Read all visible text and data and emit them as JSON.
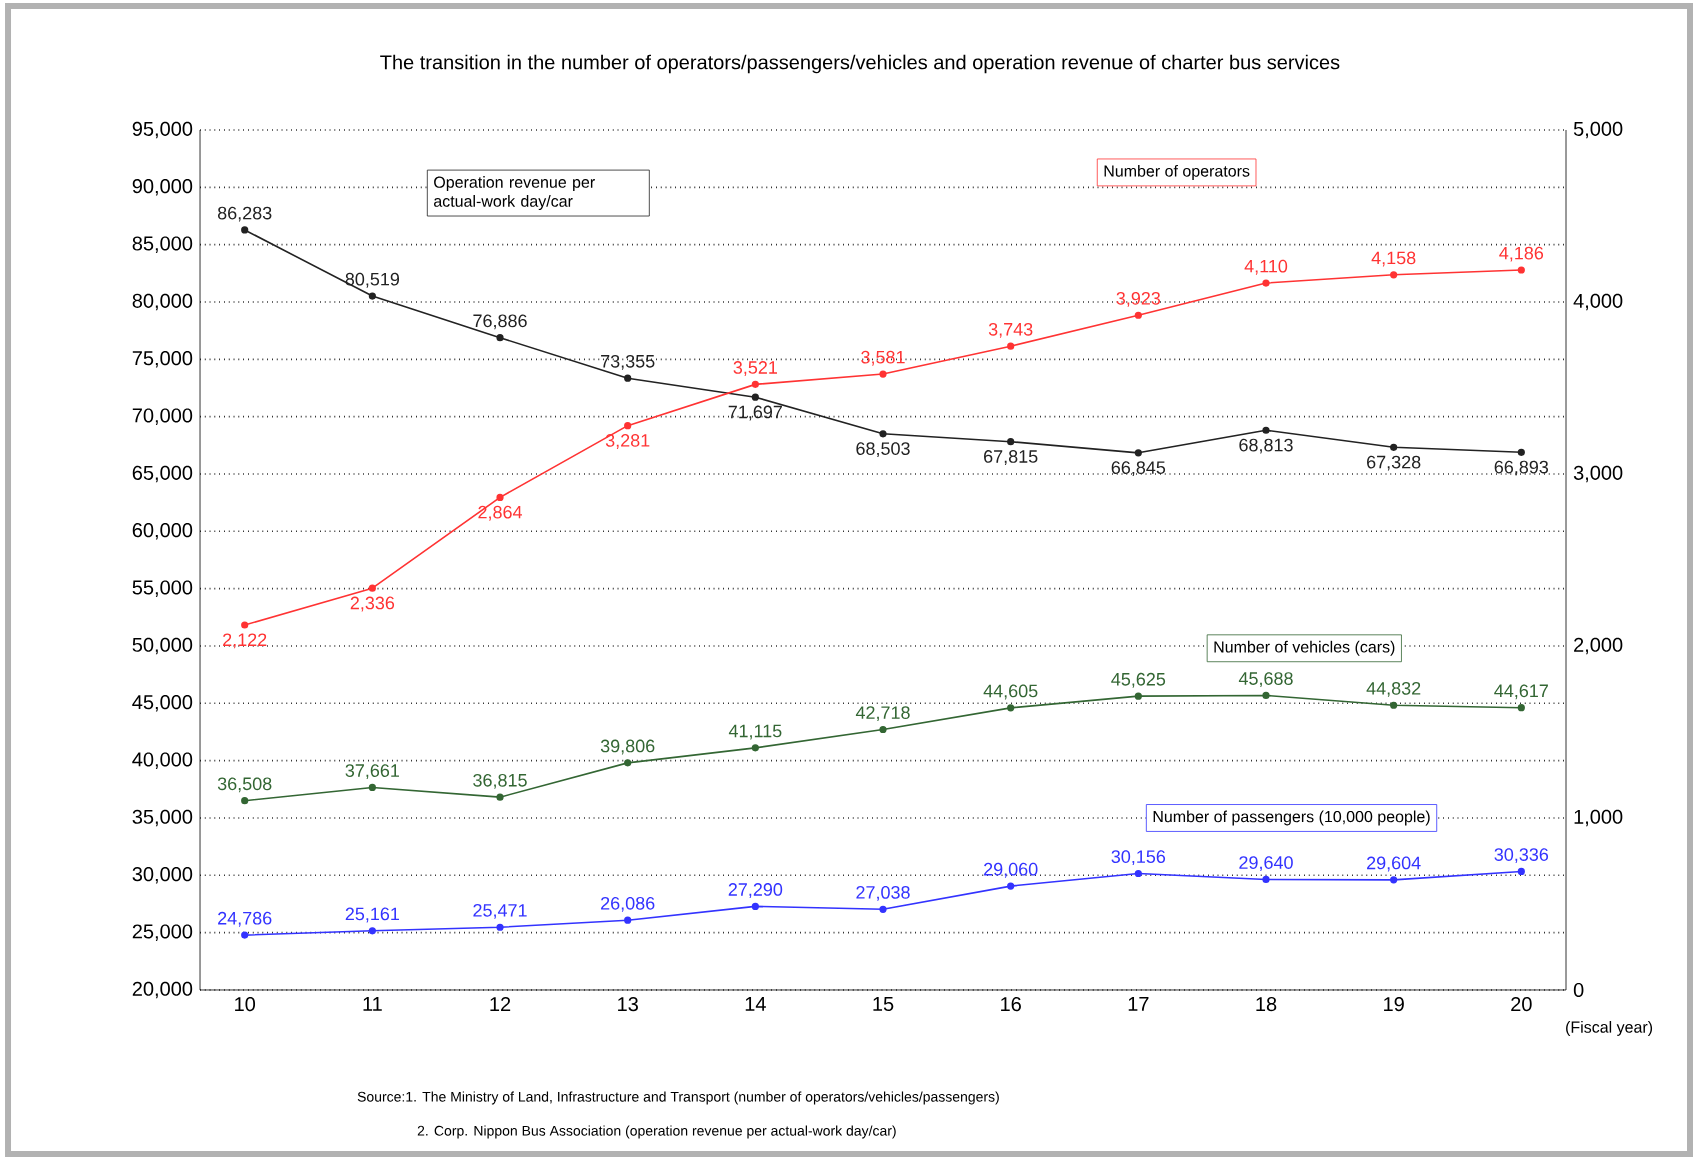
{
  "chart_data": {
    "type": "line",
    "title": "The transition in the number of operators/passengers/vehicles and operation revenue of charter bus services",
    "xlabel": "(Fiscal year)",
    "categories": [
      "10",
      "11",
      "12",
      "13",
      "14",
      "15",
      "16",
      "17",
      "18",
      "19",
      "20"
    ],
    "series": [
      {
        "name": "Operation revenue per actual-work day/car",
        "color": "#222222",
        "values": [
          86283,
          80519,
          76886,
          73355,
          71697,
          68503,
          67815,
          66845,
          68813,
          67328,
          66893
        ],
        "value_labels": [
          "86,283",
          "80,519",
          "76,886",
          "73,355",
          "71,697",
          "68,503",
          "67,815",
          "66,845",
          "68,813",
          "67,328",
          "66,893"
        ]
      },
      {
        "name": "Number of operators",
        "color": "#ff3333",
        "axis": "y2",
        "values": [
          2122,
          2336,
          2864,
          3281,
          3521,
          3581,
          3743,
          3923,
          4110,
          4158,
          4186
        ],
        "value_labels": [
          "2,122",
          "2,336",
          "2,864",
          "3,281",
          "3,521",
          "3,581",
          "3,743",
          "3,923",
          "4,110",
          "4,158",
          "4,186"
        ]
      },
      {
        "name": "Number of vehicles (cars)",
        "color": "#336633",
        "values": [
          36508,
          37661,
          36815,
          39806,
          41115,
          42718,
          44605,
          45625,
          45688,
          44832,
          44617
        ],
        "value_labels": [
          "36,508",
          "37,661",
          "36,815",
          "39,806",
          "41,115",
          "42,718",
          "44,605",
          "45,625",
          "45,688",
          "44,832",
          "44,617"
        ]
      },
      {
        "name": "Number of passengers (10,000 people)",
        "color": "#3333ff",
        "values": [
          24786,
          25161,
          25471,
          26086,
          27290,
          27038,
          29060,
          30156,
          29640,
          29604,
          30336
        ],
        "value_labels": [
          "24,786",
          "25,161",
          "25,471",
          "26,086",
          "27,290",
          "27,038",
          "29,060",
          "30,156",
          "29,640",
          "29,604",
          "30,336"
        ]
      }
    ],
    "ylim": [
      20000,
      95000
    ],
    "yticks": [
      {
        "value": 20000,
        "label": "20,000"
      },
      {
        "value": 25000,
        "label": "25,000"
      },
      {
        "value": 30000,
        "label": "30,000"
      },
      {
        "value": 35000,
        "label": "35,000"
      },
      {
        "value": 40000,
        "label": "40,000"
      },
      {
        "value": 45000,
        "label": "45,000"
      },
      {
        "value": 50000,
        "label": "50,000"
      },
      {
        "value": 55000,
        "label": "55,000"
      },
      {
        "value": 60000,
        "label": "60,000"
      },
      {
        "value": 65000,
        "label": "65,000"
      },
      {
        "value": 70000,
        "label": "70,000"
      },
      {
        "value": 75000,
        "label": "75,000"
      },
      {
        "value": 80000,
        "label": "80,000"
      },
      {
        "value": 85000,
        "label": "85,000"
      },
      {
        "value": 90000,
        "label": "90,000"
      },
      {
        "value": 95000,
        "label": "95,000"
      }
    ],
    "y2lim": [
      0,
      5000
    ],
    "y2ticks": [
      0,
      {
        "value": 1000,
        "label": "1,000"
      },
      {
        "value": 2000,
        "label": "2,000"
      },
      {
        "value": 3000,
        "label": "3,000"
      },
      {
        "value": 4000,
        "label": "4,000"
      },
      {
        "value": 5000,
        "label": "5,000"
      }
    ],
    "grid": "y",
    "marker": "circle",
    "line_style": "solid",
    "annotations": [
      "Source:1. The Ministry of Land, Infrastructure and Transport (number of operators/vehicles/passengers)",
      "2. Corp. Nippon Bus Association (operation revenue per actual-work day/car)"
    ]
  }
}
